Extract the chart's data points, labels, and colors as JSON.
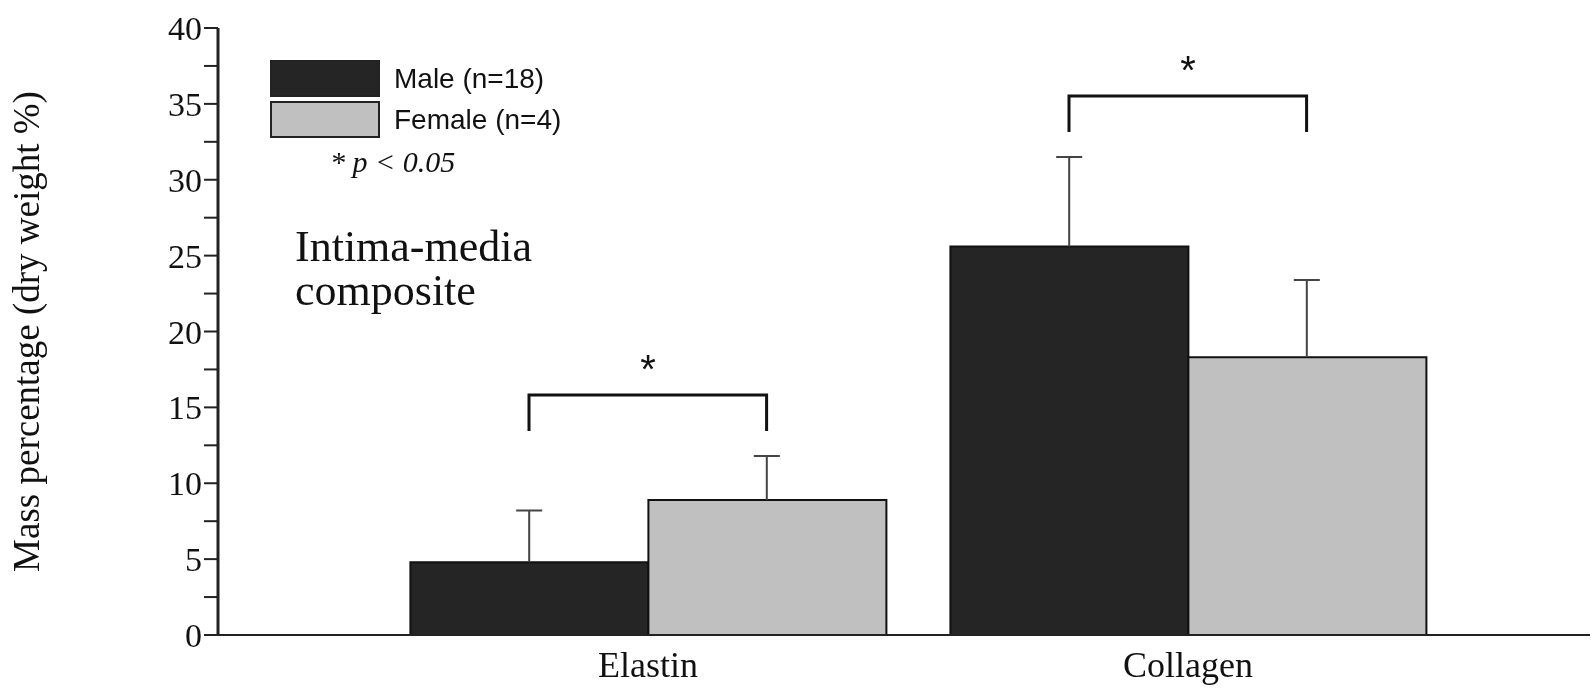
{
  "chart_data": {
    "type": "bar",
    "ylabel": "Mass percentage (dry weight %)",
    "categories": [
      "Elastin",
      "Collagen"
    ],
    "series": [
      {
        "name": "Male (n=18)",
        "color": "#252525",
        "values": [
          4.8,
          25.6
        ],
        "errors": [
          [
            4.8,
            8.2
          ],
          [
            25.6,
            31.5
          ]
        ]
      },
      {
        "name": "Female (n=4)",
        "color": "#c0c0c0",
        "values": [
          8.9,
          18.3
        ],
        "errors": [
          [
            8.9,
            11.8
          ],
          [
            18.3,
            23.4
          ]
        ]
      }
    ],
    "ylim": [
      0,
      40
    ],
    "yticks": [
      0,
      {
        "value": 2.5,
        "label": null
      },
      5,
      {
        "value": 7.5,
        "label": null
      },
      10,
      {
        "value": 12.5,
        "label": null
      },
      15,
      {
        "value": 17.5,
        "label": null
      },
      20,
      {
        "value": 22.5,
        "label": null
      },
      25,
      {
        "value": 27.5,
        "label": null
      },
      30,
      {
        "value": 32.5,
        "label": null
      },
      35,
      {
        "value": 37.5,
        "label": null
      },
      40
    ],
    "legend": "top left",
    "annotations": [
      "* p < 0.05",
      "Intima-media composite",
      "*",
      "*"
    ]
  }
}
